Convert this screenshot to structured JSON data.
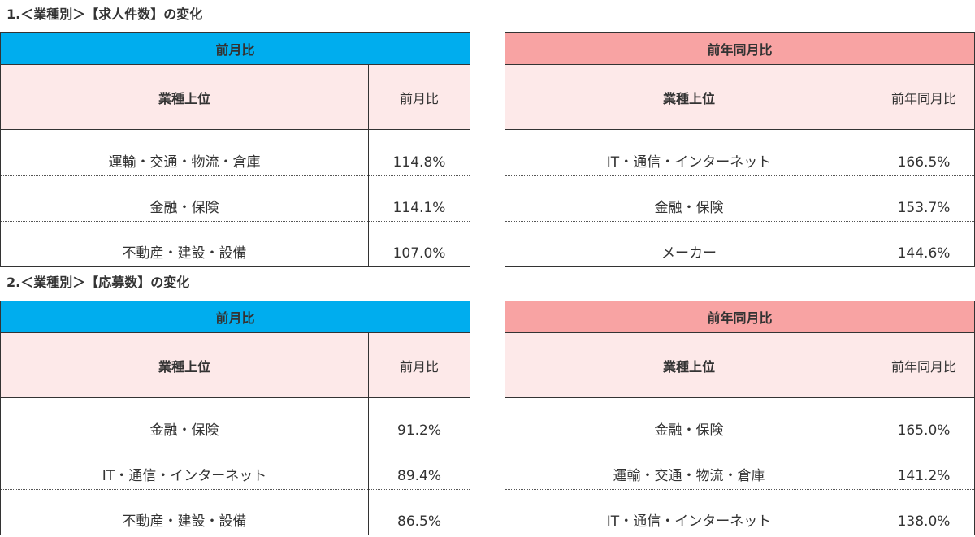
{
  "sections": [
    {
      "title": "1.＜業種別＞【求人件数】の変化",
      "tables": [
        {
          "band": "前月比",
          "band_color": "#00adee",
          "col1_header": "業種上位",
          "col2_header": "前月比",
          "rows": [
            {
              "industry": "運輸・交通・物流・倉庫",
              "value": "114.8%"
            },
            {
              "industry": "金融・保険",
              "value": "114.1%"
            },
            {
              "industry": "不動産・建設・設備",
              "value": "107.0%"
            }
          ]
        },
        {
          "band": "前年同月比",
          "band_color": "#f8a3a3",
          "col1_header": "業種上位",
          "col2_header": "前年同月比",
          "rows": [
            {
              "industry": "IT・通信・インターネット",
              "value": "166.5%"
            },
            {
              "industry": "金融・保険",
              "value": "153.7%"
            },
            {
              "industry": "メーカー",
              "value": "144.6%"
            }
          ]
        }
      ]
    },
    {
      "title": "2.＜業種別＞【応募数】の変化",
      "tables": [
        {
          "band": "前月比",
          "band_color": "#00adee",
          "col1_header": "業種上位",
          "col2_header": "前月比",
          "rows": [
            {
              "industry": "金融・保険",
              "value": "91.2%"
            },
            {
              "industry": "IT・通信・インターネット",
              "value": "89.4%"
            },
            {
              "industry": "不動産・建設・設備",
              "value": "86.5%"
            }
          ]
        },
        {
          "band": "前年同月比",
          "band_color": "#f8a3a3",
          "col1_header": "業種上位",
          "col2_header": "前年同月比",
          "rows": [
            {
              "industry": "金融・保険",
              "value": "165.0%"
            },
            {
              "industry": "運輸・交通・物流・倉庫",
              "value": "141.2%"
            },
            {
              "industry": "IT・通信・インターネット",
              "value": "138.0%"
            }
          ]
        }
      ]
    }
  ]
}
